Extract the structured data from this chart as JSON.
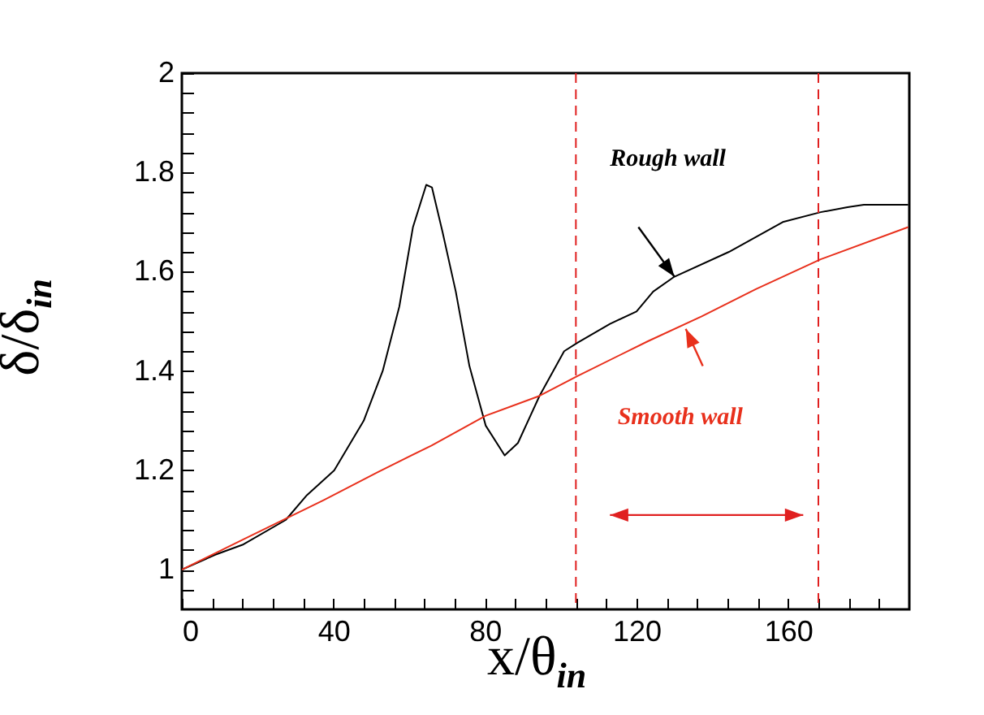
{
  "chart_data": {
    "type": "line",
    "xlabel": "x/θ$_{in}$",
    "ylabel": "δ/δ$_{in}$",
    "xlim": [
      0,
      192
    ],
    "ylim": [
      0.92,
      2
    ],
    "xticks": [
      0,
      {
        "value": 8,
        "label": null
      },
      {
        "value": 16,
        "label": null
      },
      {
        "value": 24,
        "label": null
      },
      {
        "value": 32,
        "label": null
      },
      40,
      {
        "value": 48,
        "label": null
      },
      {
        "value": 56,
        "label": null
      },
      {
        "value": 64,
        "label": null
      },
      {
        "value": 72,
        "label": null
      },
      80,
      {
        "value": 88,
        "label": null
      },
      {
        "value": 96,
        "label": null
      },
      {
        "value": 104,
        "label": null
      },
      {
        "value": 112,
        "label": null
      },
      120,
      {
        "value": 128,
        "label": null
      },
      {
        "value": 136,
        "label": null
      },
      {
        "value": 144,
        "label": null
      },
      {
        "value": 152,
        "label": null
      },
      160,
      {
        "value": 168,
        "label": null
      },
      {
        "value": 176,
        "label": null
      },
      {
        "value": 184,
        "label": null
      }
    ],
    "yticks": [
      {
        "value": 0.96,
        "label": null
      },
      1,
      {
        "value": 1.04,
        "label": null
      },
      {
        "value": 1.08,
        "label": null
      },
      {
        "value": 1.12,
        "label": null
      },
      {
        "value": 1.16,
        "label": null
      },
      1.2,
      {
        "value": 1.24,
        "label": null
      },
      {
        "value": 1.28,
        "label": null
      },
      {
        "value": 1.32,
        "label": null
      },
      {
        "value": 1.36,
        "label": null
      },
      1.4,
      {
        "value": 1.44,
        "label": null
      },
      {
        "value": 1.48,
        "label": null
      },
      {
        "value": 1.52,
        "label": null
      },
      {
        "value": 1.56,
        "label": null
      },
      1.6,
      {
        "value": 1.64,
        "label": null
      },
      {
        "value": 1.68,
        "label": null
      },
      {
        "value": 1.72,
        "label": null
      },
      {
        "value": 1.76,
        "label": null
      },
      1.8,
      {
        "value": 1.84,
        "label": null
      },
      {
        "value": 1.88,
        "label": null
      },
      {
        "value": 1.92,
        "label": null
      },
      {
        "value": 1.96,
        "label": null
      },
      2
    ],
    "grid": false,
    "legend": false,
    "marker": "none",
    "line_style": "solid",
    "series": [
      {
        "name": "Rough wall",
        "color": "#000000",
        "x": [
          0,
          8.8,
          16,
          27.4,
          33,
          40.2,
          48,
          53,
          57.4,
          61,
          64.5,
          66,
          68.8,
          72.3,
          75.9,
          80.2,
          85.2,
          88.7,
          94.4,
          100.9,
          104.4,
          113,
          120,
          124.4,
          130,
          144.4,
          158.6,
          168.6,
          175.7,
          180,
          191.7
        ],
        "values": [
          1.0,
          1.03,
          1.05,
          1.1,
          1.15,
          1.2,
          1.3,
          1.4,
          1.53,
          1.69,
          1.775,
          1.77,
          1.68,
          1.56,
          1.41,
          1.29,
          1.23,
          1.255,
          1.35,
          1.44,
          1.457,
          1.495,
          1.52,
          1.56,
          1.59,
          1.64,
          1.7,
          1.72,
          1.73,
          1.735,
          1.735
        ]
      },
      {
        "name": "Smooth wall",
        "color": "#e8301c",
        "x": [
          0,
          16,
          37.4,
          51.6,
          65.9,
          80.2,
          94.4,
          104.4,
          123,
          137.2,
          151.5,
          168.6,
          191.7
        ],
        "values": [
          1.0,
          1.06,
          1.14,
          1.196,
          1.25,
          1.31,
          1.35,
          1.39,
          1.46,
          1.51,
          1.565,
          1.625,
          1.69
        ]
      }
    ],
    "ref_lines": [
      {
        "axis": "x",
        "value": 104,
        "color": "#e02020",
        "line_style": "dashed"
      },
      {
        "axis": "x",
        "value": 168,
        "color": "#e02020",
        "line_style": "dashed"
      }
    ]
  }
}
